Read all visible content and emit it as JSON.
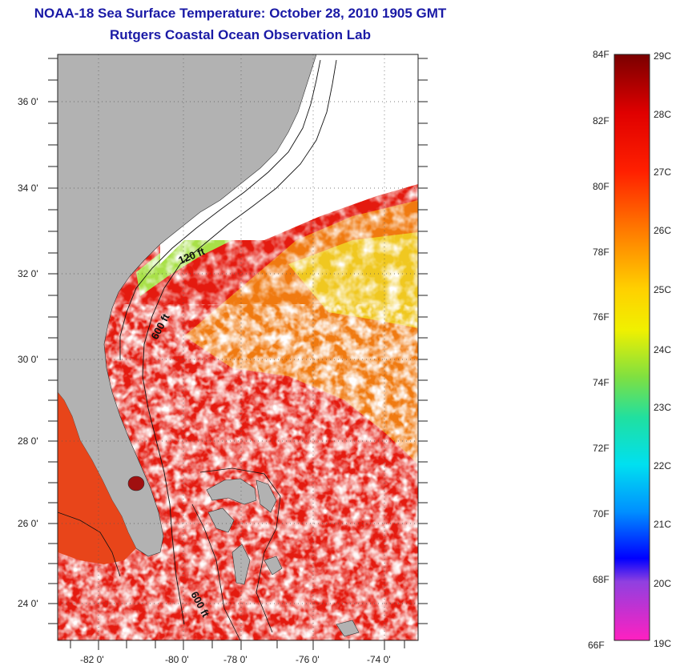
{
  "title": "NOAA-18 Sea Surface Temperature:  October 28, 2010 1905 GMT",
  "subtitle": "Rutgers Coastal Ocean Observation Lab",
  "map": {
    "lat_labels": [
      "36 0'",
      "34 0'",
      "32 0'",
      "30 0'",
      "28 0'",
      "26 0'",
      "24 0'"
    ],
    "lon_labels": [
      "-82 0'",
      "-80 0'",
      "-78 0'",
      "-76 0'",
      "-74 0'"
    ],
    "contour_labels": [
      "120 ft",
      "600 ft",
      "600 ft"
    ],
    "colors": {
      "land": "#b2b2b2",
      "cloud": "#ffffff",
      "warm": "#e41a0f",
      "orange": "#f07a10",
      "yellow": "#f0d020",
      "green": "#9ee04a"
    }
  },
  "colorbar": {
    "f_labels": [
      "84F",
      "82F",
      "80F",
      "78F",
      "76F",
      "74F",
      "72F",
      "70F",
      "68F",
      "66F"
    ],
    "c_labels": [
      "29C",
      "28C",
      "27C",
      "26C",
      "25C",
      "24C",
      "23C",
      "22C",
      "21C",
      "20C",
      "19C"
    ]
  }
}
